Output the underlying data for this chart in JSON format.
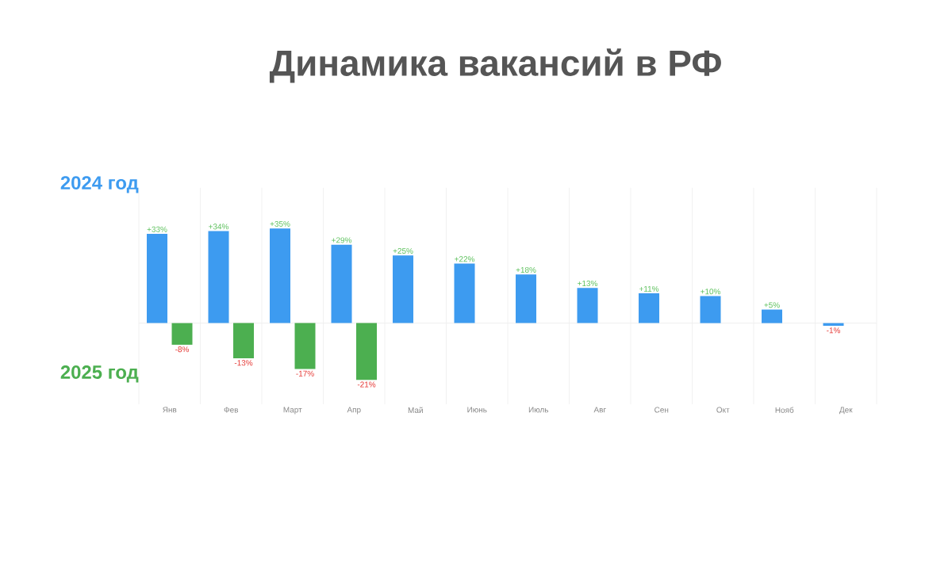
{
  "chart_data": {
    "type": "bar",
    "title": "Динамика вакансий в РФ",
    "categories": [
      "Янв",
      "Фев",
      "Март",
      "Апр",
      "Май",
      "Июнь",
      "Июль",
      "Авг",
      "Сен",
      "Окт",
      "Нояб",
      "Дек"
    ],
    "series": [
      {
        "name": "2024 год",
        "color": "#3d9bf0",
        "values": [
          33,
          34,
          35,
          29,
          25,
          22,
          18,
          13,
          11,
          10,
          5,
          -1
        ],
        "value_labels": [
          "+33%",
          "+34%",
          "+35%",
          "+29%",
          "+25%",
          "+22%",
          "+18%",
          "+13%",
          "+11%",
          "+10%",
          "+5%",
          "-1%"
        ]
      },
      {
        "name": "2025 год",
        "color": "#4caf50",
        "values": [
          -8,
          -13,
          -17,
          -21,
          null,
          null,
          null,
          null,
          null,
          null,
          null,
          null
        ],
        "value_labels": [
          "-8%",
          "-13%",
          "-17%",
          "-21%",
          null,
          null,
          null,
          null,
          null,
          null,
          null,
          null
        ]
      }
    ],
    "ylim": [
      -30,
      50
    ],
    "grid": "x",
    "legend": "left"
  }
}
